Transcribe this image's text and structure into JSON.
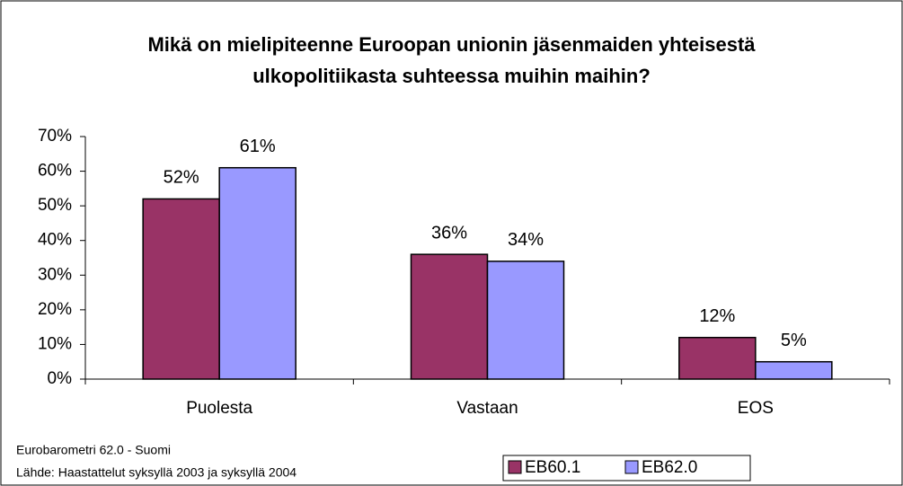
{
  "chart_data": {
    "type": "bar",
    "title": "Mikä on mielipiteenne Euroopan unionin jäsenmaiden yhteisestä ulkopolitiikasta suhteessa muihin maihin?",
    "categories": [
      "Puolesta",
      "Vastaan",
      "EOS"
    ],
    "series": [
      {
        "name": "EB60.1",
        "color": "#993366",
        "values": [
          52,
          36,
          12
        ],
        "value_labels": [
          "52%",
          "36%",
          "12%"
        ]
      },
      {
        "name": "EB62.0",
        "color": "#9999ff",
        "values": [
          61,
          34,
          5
        ],
        "value_labels": [
          "61%",
          "34%",
          "5%"
        ]
      }
    ],
    "ylim": [
      0,
      70
    ],
    "yticks": [
      {
        "value": 0,
        "label": "0%"
      },
      {
        "value": 10,
        "label": "10%"
      },
      {
        "value": 20,
        "label": "20%"
      },
      {
        "value": 30,
        "label": "30%"
      },
      {
        "value": 40,
        "label": "40%"
      },
      {
        "value": 50,
        "label": "50%"
      },
      {
        "value": 60,
        "label": "60%"
      },
      {
        "value": 70,
        "label": "70%"
      }
    ],
    "grid": false,
    "legend": "bottom",
    "notes": [
      "Eurobarometri 62.0 - Suomi",
      "Lähde: Haastattelut syksyllä 2003 ja syksyllä 2004"
    ]
  }
}
